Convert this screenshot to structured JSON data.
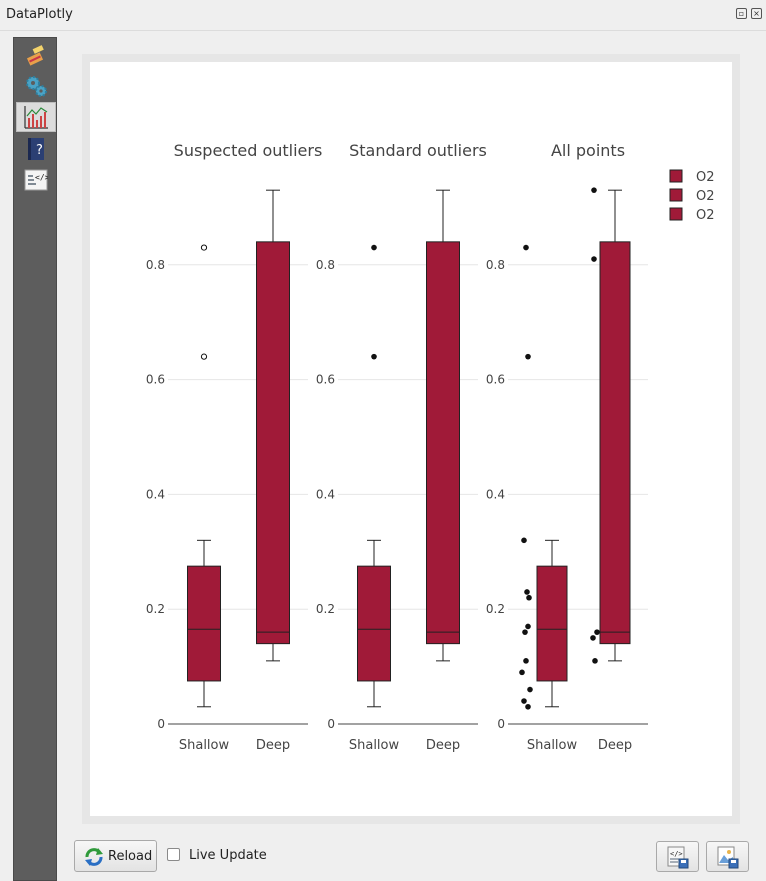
{
  "window": {
    "title": "DataPlotly"
  },
  "sidebar": {
    "items": [
      {
        "name": "plot-style",
        "icon": "paint-brush-icon"
      },
      {
        "name": "plot-properties",
        "icon": "gears-icon"
      },
      {
        "name": "plot-view",
        "icon": "bar-chart-icon",
        "active": true
      },
      {
        "name": "help",
        "icon": "help-book-icon"
      },
      {
        "name": "code",
        "icon": "code-icon"
      }
    ]
  },
  "footer": {
    "reload_label": "Reload",
    "live_update_label": "Live Update",
    "live_update_checked": false
  },
  "colors": {
    "box_fill": "#a01a38",
    "box_edge": "#222222",
    "grid": "#e6e6e6"
  },
  "chart_data": {
    "type": "box",
    "subplots": [
      {
        "title": "Suspected outliers",
        "boxpoints": "suspectedoutliers",
        "categories": [
          "Shallow",
          "Deep"
        ],
        "boxes": [
          {
            "category": "Shallow",
            "q1": 0.075,
            "median": 0.165,
            "q3": 0.275,
            "whisker_low": 0.03,
            "whisker_high": 0.32,
            "points": [
              0.64,
              0.83
            ],
            "hollow_points": true
          },
          {
            "category": "Deep",
            "q1": 0.14,
            "median": 0.16,
            "q3": 0.84,
            "whisker_low": 0.11,
            "whisker_high": 0.93,
            "points": []
          }
        ]
      },
      {
        "title": "Standard outliers",
        "boxpoints": "outliers",
        "categories": [
          "Shallow",
          "Deep"
        ],
        "boxes": [
          {
            "category": "Shallow",
            "q1": 0.075,
            "median": 0.165,
            "q3": 0.275,
            "whisker_low": 0.03,
            "whisker_high": 0.32,
            "points": [
              0.64,
              0.83
            ]
          },
          {
            "category": "Deep",
            "q1": 0.14,
            "median": 0.16,
            "q3": 0.84,
            "whisker_low": 0.11,
            "whisker_high": 0.93,
            "points": []
          }
        ]
      },
      {
        "title": "All points",
        "boxpoints": "all",
        "categories": [
          "Shallow",
          "Deep"
        ],
        "boxes": [
          {
            "category": "Shallow",
            "q1": 0.075,
            "median": 0.165,
            "q3": 0.275,
            "whisker_low": 0.03,
            "whisker_high": 0.32,
            "points": [
              0.83,
              0.64,
              0.32,
              0.23,
              0.22,
              0.17,
              0.16,
              0.11,
              0.09,
              0.06,
              0.04,
              0.03
            ]
          },
          {
            "category": "Deep",
            "q1": 0.14,
            "median": 0.16,
            "q3": 0.84,
            "whisker_low": 0.11,
            "whisker_high": 0.93,
            "points": [
              0.93,
              0.81,
              0.16,
              0.15,
              0.11
            ]
          }
        ]
      }
    ],
    "y_ticks": [
      0,
      0.2,
      0.4,
      0.6,
      0.8
    ],
    "y_tick_labels": [
      "0",
      "0.2",
      "0.4",
      "0.6",
      "0.8"
    ],
    "ylim": [
      0,
      0.96
    ],
    "legend": [
      "O2",
      "O2",
      "O2"
    ],
    "legend_position": "top-right"
  }
}
